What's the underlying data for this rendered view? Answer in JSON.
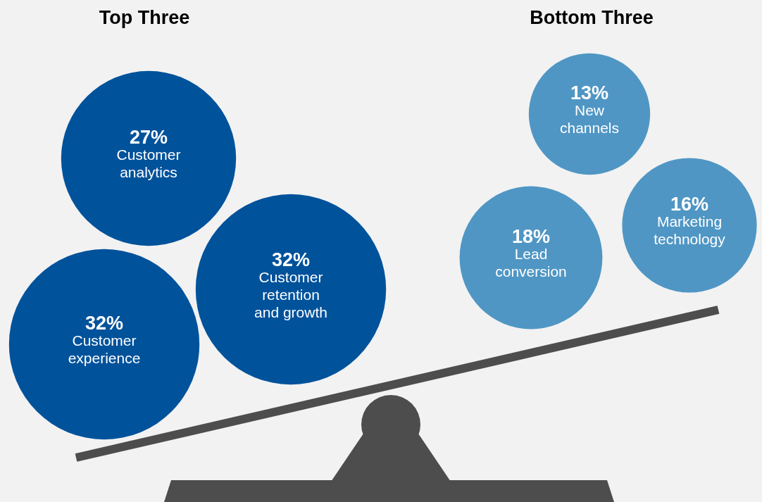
{
  "chart_data": [
    {
      "type": "other",
      "title": "Top Three",
      "categories": [
        "Customer analytics",
        "Customer experience",
        "Customer retention and growth"
      ],
      "values": [
        27,
        32,
        32
      ],
      "value_labels": [
        "27%",
        "32%",
        "32%"
      ],
      "colors": [
        "#00529b",
        "#00529b",
        "#00529b"
      ]
    },
    {
      "type": "other",
      "title": "Bottom Three",
      "categories": [
        "New channels",
        "Lead conversion",
        "Marketing technology"
      ],
      "values": [
        13,
        18,
        16
      ],
      "value_labels": [
        "13%",
        "18%",
        "16%"
      ],
      "colors": [
        "#4f96c4",
        "#4f96c4",
        "#4f96c4"
      ]
    }
  ]
}
